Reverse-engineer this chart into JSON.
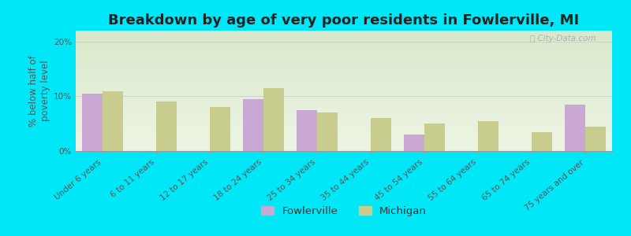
{
  "title": "Breakdown by age of very poor residents in Fowlerville, MI",
  "categories": [
    "Under 6 years",
    "6 to 11 years",
    "12 to 17 years",
    "18 to 24 years",
    "25 to 34 years",
    "35 to 44 years",
    "45 to 54 years",
    "55 to 64 years",
    "65 to 74 years",
    "75 years and over"
  ],
  "fowlerville": [
    10.5,
    0,
    0,
    9.5,
    7.5,
    0,
    3.0,
    0,
    0,
    8.5
  ],
  "michigan": [
    11.0,
    9.0,
    8.0,
    11.5,
    7.0,
    6.0,
    5.0,
    5.5,
    3.5,
    4.5
  ],
  "fowlerville_color": "#c9a8d4",
  "michigan_color": "#c8cc8c",
  "background_outer": "#00e8f8",
  "background_plot_top": "#d8e8cc",
  "background_plot_bottom": "#eef5e4",
  "ylabel": "% below half of\npoverty level",
  "ylim": [
    0,
    22
  ],
  "yticks": [
    0,
    10,
    20
  ],
  "ytick_labels": [
    "0%",
    "10%",
    "20%"
  ],
  "bar_width": 0.38,
  "legend_fowlerville": "Fowlerville",
  "legend_michigan": "Michigan",
  "title_fontsize": 13,
  "axis_label_fontsize": 8.5,
  "tick_label_fontsize": 7.5,
  "legend_fontsize": 9.5,
  "watermark": "City-Data.com"
}
